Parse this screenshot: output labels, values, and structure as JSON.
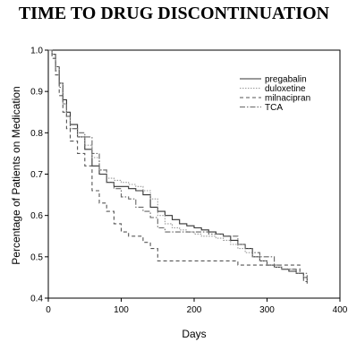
{
  "chart_data": {
    "type": "line",
    "title": "TIME TO DRUG DISCONTINUATION",
    "xlabel": "Days",
    "ylabel": "Percentage of Patients on Medication",
    "xlim": [
      0,
      400
    ],
    "ylim": [
      0.4,
      1.0
    ],
    "x_ticks": [
      0,
      100,
      200,
      300,
      400
    ],
    "y_ticks": [
      0.4,
      0.5,
      0.6,
      0.7,
      0.8,
      0.9,
      1.0
    ],
    "x_tick_labels": [
      "0",
      "100",
      "200",
      "300",
      "400"
    ],
    "y_tick_labels": [
      "0.4",
      "0.5",
      "0.6",
      "0.7",
      "0.8",
      "0.9",
      "1.0"
    ],
    "grid": false,
    "legend_position": "top-right",
    "series": [
      {
        "name": "pregabalin",
        "style": "solid",
        "points": [
          [
            0,
            1.0
          ],
          [
            5,
            0.99
          ],
          [
            10,
            0.96
          ],
          [
            15,
            0.92
          ],
          [
            20,
            0.88
          ],
          [
            25,
            0.85
          ],
          [
            30,
            0.82
          ],
          [
            40,
            0.79
          ],
          [
            50,
            0.76
          ],
          [
            60,
            0.72
          ],
          [
            70,
            0.7
          ],
          [
            80,
            0.68
          ],
          [
            90,
            0.67
          ],
          [
            100,
            0.67
          ],
          [
            110,
            0.665
          ],
          [
            120,
            0.66
          ],
          [
            130,
            0.65
          ],
          [
            140,
            0.62
          ],
          [
            150,
            0.61
          ],
          [
            160,
            0.6
          ],
          [
            170,
            0.59
          ],
          [
            180,
            0.58
          ],
          [
            190,
            0.575
          ],
          [
            200,
            0.57
          ],
          [
            210,
            0.565
          ],
          [
            220,
            0.56
          ],
          [
            230,
            0.555
          ],
          [
            240,
            0.55
          ],
          [
            250,
            0.54
          ],
          [
            260,
            0.53
          ],
          [
            270,
            0.52
          ],
          [
            280,
            0.5
          ],
          [
            290,
            0.49
          ],
          [
            300,
            0.48
          ],
          [
            310,
            0.475
          ],
          [
            320,
            0.47
          ],
          [
            330,
            0.465
          ],
          [
            340,
            0.46
          ],
          [
            350,
            0.45
          ],
          [
            355,
            0.44
          ]
        ]
      },
      {
        "name": "duloxetine",
        "style": "dotted",
        "points": [
          [
            0,
            1.0
          ],
          [
            5,
            0.99
          ],
          [
            10,
            0.96
          ],
          [
            15,
            0.92
          ],
          [
            20,
            0.87
          ],
          [
            25,
            0.84
          ],
          [
            30,
            0.81
          ],
          [
            40,
            0.79
          ],
          [
            50,
            0.77
          ],
          [
            60,
            0.74
          ],
          [
            70,
            0.71
          ],
          [
            80,
            0.69
          ],
          [
            90,
            0.685
          ],
          [
            100,
            0.68
          ],
          [
            110,
            0.675
          ],
          [
            120,
            0.67
          ],
          [
            130,
            0.66
          ],
          [
            140,
            0.64
          ],
          [
            150,
            0.6
          ],
          [
            160,
            0.58
          ],
          [
            170,
            0.57
          ],
          [
            180,
            0.565
          ],
          [
            190,
            0.56
          ],
          [
            200,
            0.555
          ],
          [
            210,
            0.55
          ],
          [
            220,
            0.55
          ],
          [
            230,
            0.545
          ],
          [
            240,
            0.54
          ],
          [
            250,
            0.53
          ],
          [
            260,
            0.52
          ],
          [
            270,
            0.51
          ],
          [
            280,
            0.5
          ],
          [
            290,
            0.49
          ],
          [
            300,
            0.48
          ],
          [
            310,
            0.475
          ],
          [
            320,
            0.47
          ],
          [
            330,
            0.47
          ],
          [
            340,
            0.46
          ],
          [
            350,
            0.45
          ],
          [
            355,
            0.44
          ]
        ]
      },
      {
        "name": "milnacipran",
        "style": "dashed",
        "points": [
          [
            0,
            1.0
          ],
          [
            5,
            0.98
          ],
          [
            10,
            0.94
          ],
          [
            15,
            0.89
          ],
          [
            20,
            0.85
          ],
          [
            25,
            0.81
          ],
          [
            30,
            0.78
          ],
          [
            40,
            0.75
          ],
          [
            50,
            0.72
          ],
          [
            60,
            0.66
          ],
          [
            70,
            0.63
          ],
          [
            80,
            0.61
          ],
          [
            90,
            0.58
          ],
          [
            100,
            0.56
          ],
          [
            110,
            0.55
          ],
          [
            120,
            0.55
          ],
          [
            130,
            0.535
          ],
          [
            140,
            0.52
          ],
          [
            150,
            0.49
          ],
          [
            160,
            0.49
          ],
          [
            200,
            0.49
          ],
          [
            240,
            0.49
          ],
          [
            260,
            0.48
          ],
          [
            300,
            0.48
          ],
          [
            340,
            0.48
          ],
          [
            345,
            0.46
          ],
          [
            350,
            0.44
          ],
          [
            355,
            0.43
          ]
        ]
      },
      {
        "name": "TCA",
        "style": "dashdot",
        "points": [
          [
            0,
            1.0
          ],
          [
            5,
            0.99
          ],
          [
            10,
            0.95
          ],
          [
            15,
            0.91
          ],
          [
            20,
            0.87
          ],
          [
            25,
            0.84
          ],
          [
            30,
            0.81
          ],
          [
            40,
            0.8
          ],
          [
            50,
            0.79
          ],
          [
            60,
            0.75
          ],
          [
            70,
            0.71
          ],
          [
            80,
            0.68
          ],
          [
            90,
            0.665
          ],
          [
            100,
            0.645
          ],
          [
            110,
            0.64
          ],
          [
            120,
            0.62
          ],
          [
            130,
            0.61
          ],
          [
            140,
            0.595
          ],
          [
            150,
            0.57
          ],
          [
            160,
            0.56
          ],
          [
            180,
            0.56
          ],
          [
            200,
            0.56
          ],
          [
            220,
            0.555
          ],
          [
            240,
            0.55
          ],
          [
            250,
            0.55
          ],
          [
            260,
            0.53
          ],
          [
            270,
            0.52
          ],
          [
            280,
            0.51
          ],
          [
            290,
            0.5
          ],
          [
            300,
            0.5
          ],
          [
            310,
            0.48
          ],
          [
            320,
            0.47
          ],
          [
            330,
            0.47
          ],
          [
            340,
            0.46
          ],
          [
            350,
            0.46
          ],
          [
            355,
            0.45
          ]
        ]
      }
    ]
  },
  "colors": {
    "pregabalin": "#333333",
    "duloxetine": "#9a9a9a",
    "milnacipran": "#555555",
    "TCA": "#666666",
    "axis": "#000000"
  }
}
